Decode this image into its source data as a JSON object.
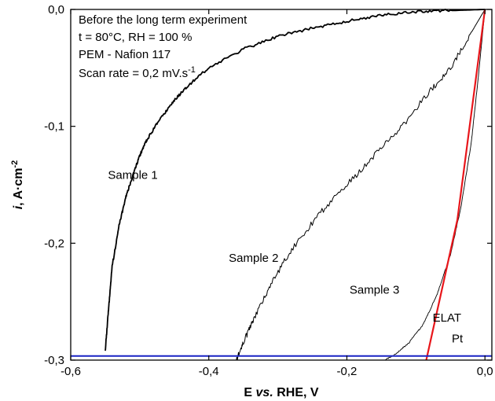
{
  "chart_data": {
    "type": "line",
    "xlabel_parts": [
      "E ",
      "vs.",
      " RHE, V"
    ],
    "ylabel_parts": [
      "i",
      ", A·cm",
      "-2"
    ],
    "xlim": [
      -0.6,
      0.01
    ],
    "ylim": [
      -0.3,
      0.0
    ],
    "x_ticks": [
      -0.6,
      -0.4,
      -0.2,
      0.0
    ],
    "x_tick_labels": [
      "-0,6",
      "-0,4",
      "-0,2",
      "0,0"
    ],
    "y_ticks": [
      0.0,
      -0.1,
      -0.2,
      -0.3
    ],
    "y_tick_labels": [
      "0,0",
      "-0,1",
      "-0,2",
      "-0,3"
    ],
    "info_lines": [
      "Before the long term experiment",
      "t = 80°C, RH = 100 %",
      "PEM - Nafion 117"
    ],
    "scan_rate_text": "Scan rate = 0,2 mV.s",
    "scan_rate_sup": "-1",
    "annotations": [
      {
        "text": "Sample 1",
        "x": -0.51,
        "y": -0.145
      },
      {
        "text": "Sample 2",
        "x": -0.335,
        "y": -0.216
      },
      {
        "text": "Sample 3",
        "x": -0.16,
        "y": -0.243
      },
      {
        "text": "ELAT",
        "x": -0.055,
        "y": -0.267
      },
      {
        "text": "Pt",
        "x": -0.04,
        "y": -0.285
      }
    ],
    "series": [
      {
        "color": "#000000",
        "width": 1.8,
        "noise": 0.0012,
        "x": [
          0.0,
          -0.05,
          -0.1,
          -0.15,
          -0.2,
          -0.25,
          -0.3,
          -0.35,
          -0.4,
          -0.43,
          -0.45,
          -0.47,
          -0.49,
          -0.5,
          -0.51,
          -0.52,
          -0.53,
          -0.54,
          -0.545,
          -0.55
        ],
        "y": [
          0.0,
          -0.001,
          -0.002,
          -0.005,
          -0.01,
          -0.016,
          -0.023,
          -0.034,
          -0.05,
          -0.065,
          -0.078,
          -0.093,
          -0.112,
          -0.125,
          -0.142,
          -0.16,
          -0.185,
          -0.22,
          -0.255,
          -0.292
        ]
      },
      {
        "color": "#000000",
        "width": 1.0,
        "noise": 0.0025,
        "x": [
          0.0,
          -0.02,
          -0.05,
          -0.08,
          -0.12,
          -0.16,
          -0.2,
          -0.24,
          -0.28,
          -0.31,
          -0.335,
          -0.35,
          -0.36
        ],
        "y": [
          0.0,
          -0.02,
          -0.05,
          -0.07,
          -0.1,
          -0.125,
          -0.15,
          -0.175,
          -0.205,
          -0.235,
          -0.265,
          -0.285,
          -0.3
        ]
      },
      {
        "color": "#000000",
        "width": 0.9,
        "noise": 0.0006,
        "x": [
          0.0,
          -0.01,
          -0.02,
          -0.035,
          -0.05,
          -0.07,
          -0.09,
          -0.11,
          -0.13,
          -0.145
        ],
        "y": [
          0.0,
          -0.06,
          -0.115,
          -0.17,
          -0.21,
          -0.245,
          -0.27,
          -0.285,
          -0.295,
          -0.3
        ]
      },
      {
        "color": "#e8161b",
        "width": 2.2,
        "noise": 0,
        "x": [
          0.0,
          -0.04,
          -0.085
        ],
        "y": [
          0.0,
          -0.18,
          -0.3
        ]
      },
      {
        "color": "#1a24c4",
        "width": 2.0,
        "noise": 0,
        "x": [
          -0.6,
          0.01
        ],
        "y": [
          -0.2965,
          -0.2965
        ]
      }
    ]
  }
}
